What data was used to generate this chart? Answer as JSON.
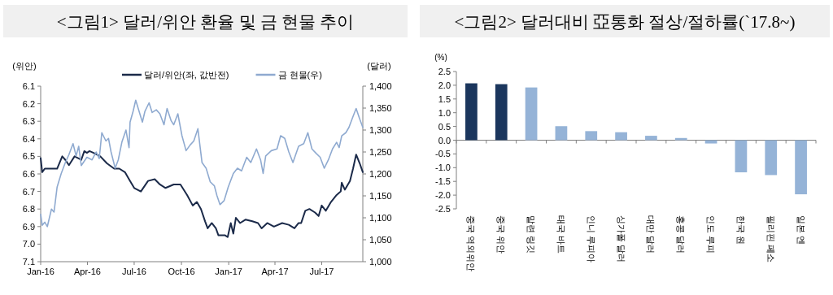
{
  "chart_data": [
    {
      "type": "line",
      "title": "<그림1> 달러/위안 환율 및 금 현물 추이",
      "ylabel": "(위안)",
      "y2label": "(달러)",
      "legend": "top",
      "xlim": [
        "2016-01-01",
        "2017-09-19"
      ],
      "xticks": [
        {
          "value": "2016-01-01",
          "label": "Jan-16"
        },
        {
          "value": "2016-04-01",
          "label": "Apr-16"
        },
        {
          "value": "2016-07-01",
          "label": "Jul-16"
        },
        {
          "value": "2016-10-01",
          "label": "Oct-16"
        },
        {
          "value": "2017-01-01",
          "label": "Jan-17"
        },
        {
          "value": "2017-04-01",
          "label": "Apr-17"
        },
        {
          "value": "2017-07-01",
          "label": "Jul-17"
        }
      ],
      "ylim": [
        7.1,
        6.1
      ],
      "yticks": [
        6.1,
        6.2,
        6.3,
        6.4,
        6.5,
        6.6,
        6.7,
        6.8,
        6.9,
        {
          "value": 7.0,
          "label": "7.0"
        },
        7.1
      ],
      "y2lim": [
        1000,
        1400
      ],
      "y2ticks": [
        {
          "value": 1000,
          "label": "1,000"
        },
        {
          "value": 1050,
          "label": "1,050"
        },
        {
          "value": 1100,
          "label": "1,100"
        },
        {
          "value": 1150,
          "label": "1,150"
        },
        {
          "value": 1200,
          "label": "1,200"
        },
        {
          "value": 1250,
          "label": "1,250"
        },
        {
          "value": 1300,
          "label": "1,300"
        },
        {
          "value": 1350,
          "label": "1,350"
        },
        {
          "value": 1400,
          "label": "1,400"
        }
      ],
      "series": [
        {
          "name": "달러/위안(좌, 값반전)",
          "color": "#1b2a49",
          "x": [
            "2016-01-01",
            "2016-01-04",
            "2016-01-09",
            "2016-02-02",
            "2016-02-12",
            "2016-02-18",
            "2016-02-25",
            "2016-03-07",
            "2016-03-20",
            "2016-03-26",
            "2016-03-31",
            "2016-04-05",
            "2016-04-13",
            "2016-04-26",
            "2016-05-09",
            "2016-05-23",
            "2016-06-02",
            "2016-06-13",
            "2016-06-23",
            "2016-07-01",
            "2016-07-14",
            "2016-07-28",
            "2016-08-10",
            "2016-08-20",
            "2016-08-31",
            "2016-09-16",
            "2016-09-29",
            "2016-10-12",
            "2016-10-23",
            "2016-10-31",
            "2016-11-08",
            "2016-11-16",
            "2016-11-21",
            "2016-11-29",
            "2016-12-07",
            "2016-12-12",
            "2016-12-17",
            "2016-12-25",
            "2016-12-30",
            "2017-01-05",
            "2017-01-10",
            "2017-01-15",
            "2017-01-23",
            "2017-02-03",
            "2017-02-16",
            "2017-02-27",
            "2017-03-06",
            "2017-03-17",
            "2017-03-30",
            "2017-04-15",
            "2017-04-28",
            "2017-05-09",
            "2017-05-17",
            "2017-05-22",
            "2017-05-30",
            "2017-06-07",
            "2017-06-18",
            "2017-06-25",
            "2017-07-01",
            "2017-07-09",
            "2017-07-19",
            "2017-07-30",
            "2017-08-07",
            "2017-08-09",
            "2017-08-15",
            "2017-08-25",
            "2017-08-31",
            "2017-09-06",
            "2017-09-13",
            "2017-09-19"
          ],
          "values": [
            6.51,
            6.59,
            6.57,
            6.57,
            6.5,
            6.52,
            6.55,
            6.5,
            6.52,
            6.47,
            6.48,
            6.47,
            6.48,
            6.5,
            6.54,
            6.57,
            6.57,
            6.59,
            6.64,
            6.68,
            6.7,
            6.64,
            6.63,
            6.66,
            6.68,
            6.66,
            6.66,
            6.72,
            6.78,
            6.76,
            6.8,
            6.87,
            6.91,
            6.88,
            6.91,
            6.95,
            6.95,
            6.95,
            6.96,
            6.88,
            6.94,
            6.85,
            6.88,
            6.86,
            6.87,
            6.88,
            6.91,
            6.88,
            6.9,
            6.88,
            6.89,
            6.91,
            6.88,
            6.88,
            6.81,
            6.8,
            6.82,
            6.84,
            6.78,
            6.81,
            6.76,
            6.72,
            6.7,
            6.65,
            6.69,
            6.64,
            6.57,
            6.49,
            6.54,
            6.59
          ]
        },
        {
          "name": "금 현물(우)",
          "color": "#8faad0",
          "axis": "y2",
          "x": [
            "2016-01-01",
            "2016-01-04",
            "2016-01-09",
            "2016-01-14",
            "2016-01-22",
            "2016-01-27",
            "2016-02-02",
            "2016-02-10",
            "2016-02-18",
            "2016-02-25",
            "2016-03-04",
            "2016-03-10",
            "2016-03-15",
            "2016-03-20",
            "2016-03-31",
            "2016-04-10",
            "2016-04-18",
            "2016-04-24",
            "2016-04-29",
            "2016-05-07",
            "2016-05-12",
            "2016-05-17",
            "2016-05-25",
            "2016-05-31",
            "2016-06-07",
            "2016-06-15",
            "2016-06-21",
            "2016-06-23",
            "2016-06-29",
            "2016-07-04",
            "2016-07-12",
            "2016-07-17",
            "2016-07-22",
            "2016-07-30",
            "2016-08-05",
            "2016-08-13",
            "2016-08-20",
            "2016-08-28",
            "2016-09-03",
            "2016-09-11",
            "2016-09-16",
            "2016-09-24",
            "2016-10-02",
            "2016-10-10",
            "2016-10-18",
            "2016-10-25",
            "2016-11-02",
            "2016-11-10",
            "2016-11-18",
            "2016-11-26",
            "2016-12-04",
            "2016-12-09",
            "2016-12-15",
            "2016-12-23",
            "2016-12-31",
            "2017-01-10",
            "2017-01-18",
            "2017-01-26",
            "2017-02-05",
            "2017-02-13",
            "2017-02-24",
            "2017-03-04",
            "2017-03-09",
            "2017-03-14",
            "2017-03-25",
            "2017-04-05",
            "2017-04-12",
            "2017-04-20",
            "2017-04-28",
            "2017-05-06",
            "2017-05-17",
            "2017-05-27",
            "2017-06-04",
            "2017-06-12",
            "2017-06-20",
            "2017-06-28",
            "2017-07-06",
            "2017-07-14",
            "2017-07-22",
            "2017-07-30",
            "2017-08-04",
            "2017-08-09",
            "2017-08-17",
            "2017-08-23",
            "2017-08-31",
            "2017-09-06",
            "2017-09-13",
            "2017-09-19"
          ],
          "values": [
            1108,
            1083,
            1090,
            1080,
            1120,
            1113,
            1170,
            1201,
            1226,
            1244,
            1269,
            1241,
            1263,
            1219,
            1238,
            1232,
            1250,
            1235,
            1294,
            1275,
            1281,
            1250,
            1213,
            1232,
            1272,
            1300,
            1260,
            1318,
            1343,
            1368,
            1337,
            1318,
            1343,
            1362,
            1340,
            1346,
            1337,
            1312,
            1349,
            1321,
            1312,
            1337,
            1287,
            1253,
            1266,
            1275,
            1303,
            1226,
            1213,
            1182,
            1173,
            1151,
            1130,
            1139,
            1170,
            1201,
            1213,
            1207,
            1238,
            1226,
            1257,
            1232,
            1201,
            1241,
            1253,
            1257,
            1287,
            1281,
            1250,
            1226,
            1263,
            1269,
            1294,
            1257,
            1247,
            1238,
            1213,
            1232,
            1257,
            1272,
            1260,
            1287,
            1294,
            1306,
            1331,
            1349,
            1325,
            1306
          ]
        }
      ]
    },
    {
      "type": "bar",
      "title": "<그림2> 달러대비 亞통화 절상/절하률(`17.8~)",
      "ylabel": "(%)",
      "categories": [
        "중국 역외위안",
        "중국 위안",
        "말련 링깃",
        "태국 바트",
        "인니 루피아",
        "싱가폴 달러",
        "대만 달러",
        "홍콩 달러",
        "인도 루피",
        "한국 원",
        "필리핀 페소",
        "일본 엔"
      ],
      "values": [
        2.07,
        2.04,
        1.92,
        0.51,
        0.33,
        0.29,
        0.16,
        0.08,
        -0.12,
        -1.17,
        -1.27,
        -1.97
      ],
      "colors": [
        "#1b365d",
        "#1b365d",
        "#95b3d7",
        "#95b3d7",
        "#95b3d7",
        "#95b3d7",
        "#95b3d7",
        "#95b3d7",
        "#95b3d7",
        "#95b3d7",
        "#95b3d7",
        "#95b3d7"
      ],
      "ylim": [
        -2.5,
        2.5
      ],
      "yticks": [
        {
          "value": -2.5,
          "label": "-2.5"
        },
        {
          "value": -2.0,
          "label": "-2.0"
        },
        {
          "value": -1.5,
          "label": "-1.5"
        },
        {
          "value": -1.0,
          "label": "-1.0"
        },
        {
          "value": -0.5,
          "label": "-0.5"
        },
        {
          "value": 0.0,
          "label": "0.0"
        },
        {
          "value": 0.5,
          "label": "0.5"
        },
        {
          "value": 1.0,
          "label": "1.0"
        },
        {
          "value": 1.5,
          "label": "1.5"
        },
        {
          "value": 2.0,
          "label": "2.0"
        },
        {
          "value": 2.5,
          "label": "2.5"
        }
      ]
    }
  ]
}
